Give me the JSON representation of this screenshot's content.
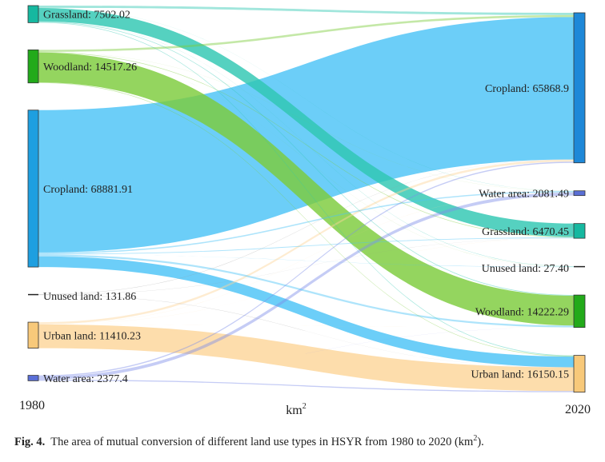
{
  "chart_data": {
    "type": "sankey",
    "unit_label": "km",
    "unit_exponent": "2",
    "left_year": "1980",
    "right_year": "2020",
    "source_nodes": [
      {
        "id": "grass",
        "label": "Grassland: 7502.02",
        "value": 7502.02,
        "color": "#16b8a0"
      },
      {
        "id": "wood",
        "label": "Woodland: 14517.26",
        "value": 14517.26,
        "color": "#22aa1a"
      },
      {
        "id": "crop",
        "label": "Cropland: 68881.91",
        "value": 68881.91,
        "color": "#1e9fe0"
      },
      {
        "id": "unused",
        "label": "Unused land: 131.86",
        "value": 131.86,
        "color": "#222222"
      },
      {
        "id": "urban",
        "label": "Urban land: 11410.23",
        "value": 11410.23,
        "color": "#f8c97a"
      },
      {
        "id": "water",
        "label": "Water area: 2377.4",
        "value": 2377.4,
        "color": "#5a6fd6"
      }
    ],
    "target_nodes": [
      {
        "id": "crop",
        "label": "Cropland: 65868.9",
        "value": 65868.9,
        "color": "#1e88d8"
      },
      {
        "id": "water",
        "label": "Water area: 2081.49",
        "value": 2081.49,
        "color": "#5a6fd6"
      },
      {
        "id": "grass",
        "label": "Grassland: 6470.45",
        "value": 6470.45,
        "color": "#16b8a0"
      },
      {
        "id": "unused",
        "label": "Unused land: 27.40",
        "value": 27.4,
        "color": "#222222"
      },
      {
        "id": "wood",
        "label": "Woodland: 14222.29",
        "value": 14222.29,
        "color": "#22aa1a"
      },
      {
        "id": "urban",
        "label": "Urban land: 16150.15",
        "value": 16150.15,
        "color": "#f8c97a"
      }
    ],
    "flows": [
      {
        "source": "grass",
        "target": "crop",
        "value": 1000,
        "color": "#2fc7b2"
      },
      {
        "source": "grass",
        "target": "water",
        "value": 60,
        "color": "#2fc7b2"
      },
      {
        "source": "grass",
        "target": "grass",
        "value": 5850,
        "color": "#2fc7b2"
      },
      {
        "source": "grass",
        "target": "unused",
        "value": 10,
        "color": "#2fc7b2"
      },
      {
        "source": "grass",
        "target": "wood",
        "value": 300,
        "color": "#2fc7b2"
      },
      {
        "source": "grass",
        "target": "urban",
        "value": 282.02,
        "color": "#2fc7b2"
      },
      {
        "source": "wood",
        "target": "crop",
        "value": 900,
        "color": "#7ccc3c"
      },
      {
        "source": "wood",
        "target": "water",
        "value": 40,
        "color": "#7ccc3c"
      },
      {
        "source": "wood",
        "target": "grass",
        "value": 250,
        "color": "#7ccc3c"
      },
      {
        "source": "wood",
        "target": "unused",
        "value": 5,
        "color": "#7ccc3c"
      },
      {
        "source": "wood",
        "target": "wood",
        "value": 13080,
        "color": "#7ccc3c"
      },
      {
        "source": "wood",
        "target": "urban",
        "value": 242.26,
        "color": "#7ccc3c"
      },
      {
        "source": "crop",
        "target": "crop",
        "value": 62500,
        "color": "#4cc3f7"
      },
      {
        "source": "crop",
        "target": "water",
        "value": 550,
        "color": "#4cc3f7"
      },
      {
        "source": "crop",
        "target": "grass",
        "value": 330,
        "color": "#4cc3f7"
      },
      {
        "source": "crop",
        "target": "unused",
        "value": 12,
        "color": "#4cc3f7"
      },
      {
        "source": "crop",
        "target": "wood",
        "value": 800,
        "color": "#4cc3f7"
      },
      {
        "source": "crop",
        "target": "urban",
        "value": 4689.91,
        "color": "#4cc3f7"
      },
      {
        "source": "unused",
        "target": "crop",
        "value": 60,
        "color": "#9a9a9a"
      },
      {
        "source": "unused",
        "target": "grass",
        "value": 30,
        "color": "#9a9a9a"
      },
      {
        "source": "unused",
        "target": "unused",
        "value": 0.4,
        "color": "#9a9a9a"
      },
      {
        "source": "unused",
        "target": "urban",
        "value": 41.46,
        "color": "#9a9a9a"
      },
      {
        "source": "urban",
        "target": "crop",
        "value": 900,
        "color": "#fcd59a"
      },
      {
        "source": "urban",
        "target": "water",
        "value": 60,
        "color": "#fcd59a"
      },
      {
        "source": "urban",
        "target": "grass",
        "value": 10,
        "color": "#fcd59a"
      },
      {
        "source": "urban",
        "target": "wood",
        "value": 20,
        "color": "#fcd59a"
      },
      {
        "source": "urban",
        "target": "urban",
        "value": 10420.23,
        "color": "#fcd59a"
      },
      {
        "source": "water",
        "target": "crop",
        "value": 508.9,
        "color": "#7f8fe8"
      },
      {
        "source": "water",
        "target": "water",
        "value": 1371.49,
        "color": "#7f8fe8"
      },
      {
        "source": "water",
        "target": "grass",
        "value": 0.45,
        "color": "#7f8fe8"
      },
      {
        "source": "water",
        "target": "wood",
        "value": 22.29,
        "color": "#7f8fe8"
      },
      {
        "source": "water",
        "target": "urban",
        "value": 474.27,
        "color": "#7f8fe8"
      }
    ]
  },
  "caption": {
    "fig_label": "Fig. 4.",
    "text": "The area of mutual conversion of different land use types in HSYR from 1980 to 2020 (km",
    "sup": "2",
    "tail": ")."
  }
}
